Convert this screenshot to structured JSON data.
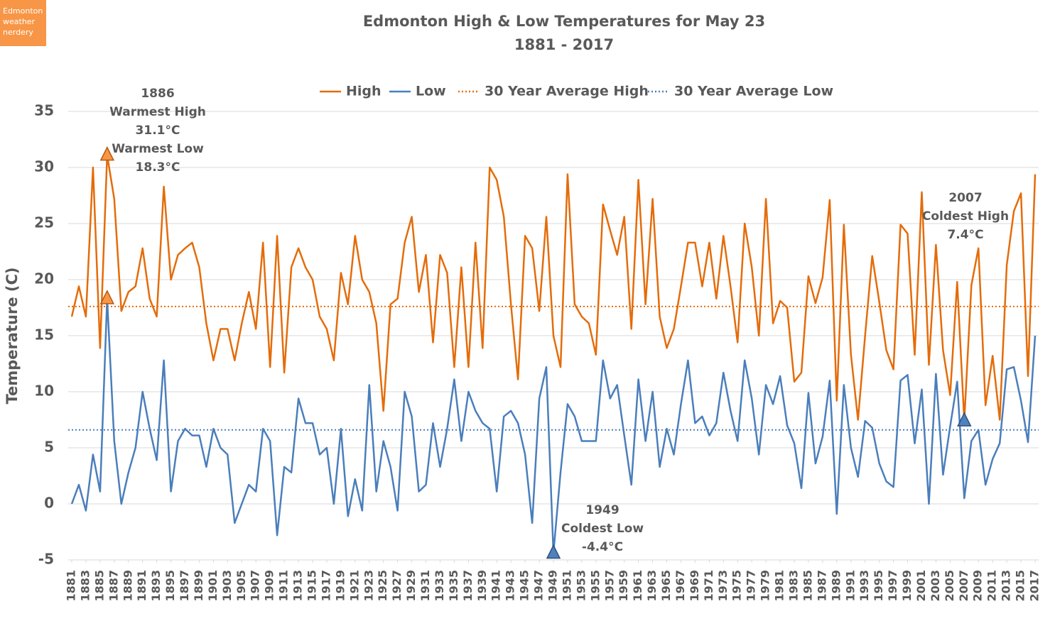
{
  "logo": {
    "lines": [
      "Edmonton",
      "weather",
      "nerdery"
    ]
  },
  "chart_data": {
    "type": "line",
    "title": "Edmonton High & Low Temperatures for May 23",
    "subtitle": "1881 - 2017",
    "y_label": "Temperature (C)",
    "x": [
      1881,
      1882,
      1883,
      1884,
      1885,
      1886,
      1887,
      1888,
      1889,
      1890,
      1891,
      1892,
      1893,
      1894,
      1895,
      1896,
      1897,
      1898,
      1899,
      1900,
      1901,
      1902,
      1903,
      1904,
      1905,
      1906,
      1907,
      1908,
      1909,
      1910,
      1911,
      1912,
      1913,
      1914,
      1915,
      1916,
      1917,
      1918,
      1919,
      1920,
      1921,
      1922,
      1923,
      1924,
      1925,
      1926,
      1927,
      1928,
      1929,
      1930,
      1931,
      1932,
      1933,
      1934,
      1935,
      1936,
      1937,
      1938,
      1939,
      1940,
      1941,
      1942,
      1943,
      1944,
      1945,
      1946,
      1947,
      1948,
      1949,
      1950,
      1951,
      1952,
      1953,
      1954,
      1955,
      1956,
      1957,
      1958,
      1959,
      1960,
      1961,
      1962,
      1963,
      1964,
      1965,
      1966,
      1967,
      1968,
      1969,
      1970,
      1971,
      1972,
      1973,
      1974,
      1975,
      1976,
      1977,
      1978,
      1979,
      1980,
      1981,
      1982,
      1983,
      1984,
      1985,
      1986,
      1987,
      1988,
      1989,
      1990,
      1991,
      1992,
      1993,
      1994,
      1995,
      1996,
      1997,
      1998,
      1999,
      2000,
      2001,
      2002,
      2003,
      2004,
      2005,
      2006,
      2007,
      2008,
      2009,
      2010,
      2011,
      2012,
      2013,
      2014,
      2015,
      2016,
      2017
    ],
    "series": [
      {
        "name": "High",
        "color": "#e46c0a",
        "values": [
          16.7,
          19.4,
          16.7,
          30.0,
          13.9,
          31.1,
          27.2,
          17.2,
          18.9,
          19.4,
          22.8,
          18.3,
          16.7,
          28.3,
          20.0,
          22.2,
          22.8,
          23.3,
          21.1,
          16.1,
          12.8,
          15.6,
          15.6,
          12.8,
          16.1,
          18.9,
          15.6,
          23.3,
          12.2,
          23.9,
          11.7,
          21.1,
          22.8,
          21.1,
          20.0,
          16.7,
          15.6,
          12.8,
          20.6,
          17.8,
          23.9,
          20.0,
          18.9,
          16.1,
          8.3,
          17.8,
          18.3,
          23.3,
          25.6,
          18.9,
          22.2,
          14.4,
          22.2,
          20.6,
          12.2,
          21.1,
          12.2,
          23.3,
          13.9,
          30.0,
          28.9,
          25.6,
          17.8,
          11.1,
          23.9,
          22.8,
          17.2,
          25.6,
          15.0,
          12.2,
          29.4,
          17.8,
          16.7,
          16.1,
          13.3,
          26.7,
          24.4,
          22.2,
          25.6,
          15.6,
          28.9,
          17.8,
          27.2,
          16.7,
          13.9,
          15.6,
          19.4,
          23.3,
          23.3,
          19.4,
          23.3,
          18.3,
          23.9,
          19.4,
          14.4,
          25.0,
          21.1,
          15.0,
          27.2,
          16.1,
          18.1,
          17.5,
          10.9,
          11.7,
          20.3,
          17.9,
          20.2,
          27.1,
          9.2,
          24.9,
          13.3,
          7.5,
          15.0,
          22.1,
          18.0,
          13.7,
          12.0,
          24.9,
          24.1,
          13.3,
          27.8,
          12.4,
          23.1,
          13.7,
          9.7,
          19.8,
          7.4,
          19.5,
          22.8,
          8.8,
          13.2,
          7.5,
          21.3,
          26.1,
          27.7,
          11.4,
          29.4
        ]
      },
      {
        "name": "Low",
        "color": "#4a7ebb",
        "values": [
          0.0,
          1.7,
          -0.6,
          4.4,
          1.1,
          18.3,
          5.6,
          0.0,
          2.8,
          5.0,
          10.0,
          6.7,
          3.9,
          12.8,
          1.1,
          5.6,
          6.7,
          6.1,
          6.1,
          3.3,
          6.7,
          5.0,
          4.4,
          -1.7,
          0.0,
          1.7,
          1.1,
          6.7,
          5.6,
          -2.8,
          3.3,
          2.8,
          9.4,
          7.2,
          7.2,
          4.4,
          5.0,
          0.0,
          6.7,
          -1.1,
          2.2,
          -0.6,
          10.6,
          1.1,
          5.6,
          3.3,
          -0.6,
          10.0,
          7.8,
          1.1,
          1.7,
          7.2,
          3.3,
          6.7,
          11.1,
          5.6,
          10.0,
          8.3,
          7.2,
          6.7,
          1.1,
          7.8,
          8.3,
          7.2,
          4.4,
          -1.7,
          9.4,
          12.2,
          -4.4,
          2.8,
          8.9,
          7.8,
          5.6,
          5.6,
          5.6,
          12.8,
          9.4,
          10.6,
          6.1,
          1.7,
          11.1,
          5.6,
          10.0,
          3.3,
          6.7,
          4.4,
          8.9,
          12.8,
          7.2,
          7.8,
          6.1,
          7.2,
          11.7,
          8.3,
          5.6,
          12.8,
          9.4,
          4.4,
          10.6,
          8.9,
          11.4,
          7.0,
          5.4,
          1.4,
          9.9,
          3.6,
          6.0,
          11.0,
          -0.9,
          10.6,
          5.0,
          2.4,
          7.4,
          6.8,
          3.6,
          2.0,
          1.5,
          11.0,
          11.5,
          5.4,
          10.2,
          0.0,
          11.6,
          2.6,
          6.9,
          10.9,
          0.5,
          5.6,
          6.6,
          1.7,
          4.0,
          5.4,
          12.0,
          12.2,
          9.2,
          5.5,
          15.0
        ]
      }
    ],
    "reference_lines": [
      {
        "name": "30 Year Average High",
        "color": "#e46c0a",
        "value": 17.6
      },
      {
        "name": "30 Year Average Low",
        "color": "#4a7ebb",
        "value": 6.6
      }
    ],
    "annotations": [
      {
        "year": 1886,
        "lines": [
          "Warmest High",
          "31.1°C",
          "Warmest Low",
          "18.3°C"
        ]
      },
      {
        "year": 1949,
        "lines": [
          "Coldest Low",
          "-4.4°C"
        ]
      },
      {
        "year": 2007,
        "lines": [
          "Coldest High",
          "7.4°C"
        ]
      }
    ],
    "xlim": [
      1880.5,
      2017.5
    ],
    "xticks": [
      1881,
      1883,
      1885,
      1887,
      1889,
      1891,
      1893,
      1895,
      1897,
      1899,
      1901,
      1903,
      1905,
      1907,
      1909,
      1911,
      1913,
      1915,
      1917,
      1919,
      1921,
      1923,
      1925,
      1927,
      1929,
      1931,
      1933,
      1935,
      1937,
      1939,
      1941,
      1943,
      1945,
      1947,
      1949,
      1951,
      1953,
      1955,
      1957,
      1959,
      1961,
      1963,
      1965,
      1967,
      1969,
      1971,
      1973,
      1975,
      1977,
      1979,
      1981,
      1983,
      1985,
      1987,
      1989,
      1991,
      1993,
      1995,
      1997,
      1999,
      2001,
      2003,
      2005,
      2007,
      2009,
      2011,
      2013,
      2015,
      2017
    ],
    "ylim": [
      -5,
      35
    ],
    "yticks": [
      -5,
      0,
      5,
      10,
      15,
      20,
      25,
      30,
      35
    ],
    "grid": true,
    "legend": "top"
  }
}
